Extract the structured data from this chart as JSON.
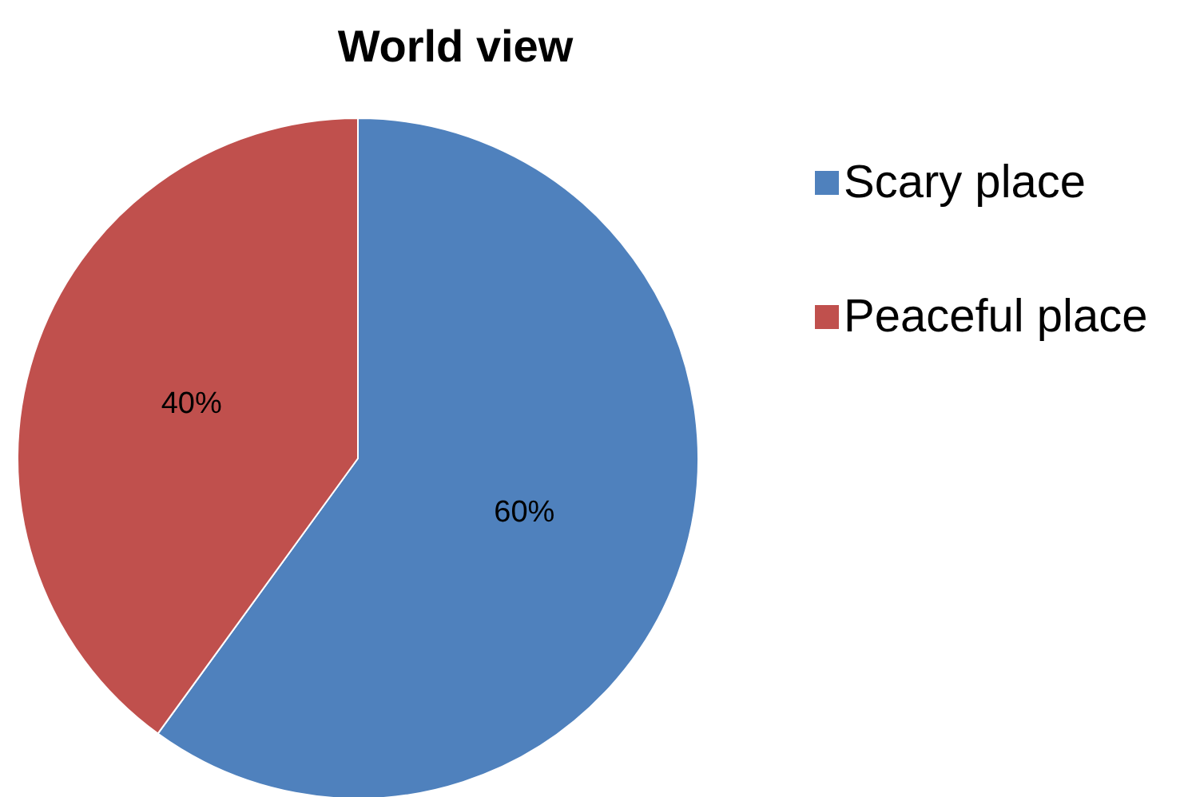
{
  "chart_data": {
    "type": "pie",
    "title": "World view",
    "categories": [
      "Scary place",
      "Peaceful place"
    ],
    "values": [
      60,
      40
    ],
    "colors": [
      "#4f81bd",
      "#c0504d"
    ],
    "value_labels": [
      "60%",
      "40%"
    ],
    "legend": "top right"
  }
}
